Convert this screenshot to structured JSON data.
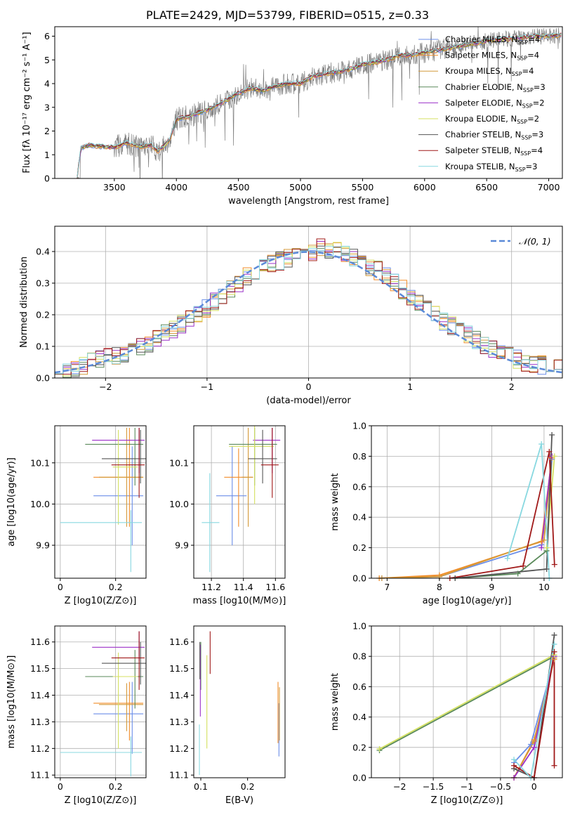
{
  "figure": {
    "title": "PLATE=2429, MJD=53799, FIBERID=0515, z=0.33"
  },
  "colors": {
    "models": [
      "#6b8ee8",
      "#f28c28",
      "#d49a3a",
      "#5a8a5a",
      "#9b30c8",
      "#d4e060",
      "#555555",
      "#a01818",
      "#88d8e0"
    ],
    "spectrum": "#808080",
    "normal": "#5b8ad8",
    "grid": "#b0b0b0"
  },
  "chart_data": [
    {
      "id": "spectrum",
      "type": "line",
      "xlabel": "wavelength [Angstrom, rest frame]",
      "ylabel": "Flux [fλ 10⁻¹⁷ erg cm⁻² s⁻¹ A⁻¹]",
      "xlim": [
        3020,
        7110
      ],
      "ylim": [
        0,
        6.4
      ],
      "xticks": [
        3500,
        4000,
        4500,
        5000,
        5500,
        6000,
        6500,
        7000
      ],
      "yticks": [
        0,
        1,
        2,
        3,
        4,
        5,
        6
      ],
      "grid": false,
      "legend_position": "top-right",
      "legend": [
        "Chabrier MILES, N_SSP=4",
        "Salpeter MILES, N_SSP=4",
        "Kroupa MILES, N_SSP=4",
        "Chabrier ELODIE, N_SSP=3",
        "Salpeter ELODIE, N_SSP=2",
        "Kroupa ELODIE, N_SSP=2",
        "Chabrier STELIB, N_SSP=3",
        "Salpeter STELIB, N_SSP=4",
        "Kroupa STELIB, N_SSP=3"
      ],
      "model_curve": {
        "x": [
          3200,
          3230,
          3300,
          3400,
          3500,
          3600,
          3700,
          3800,
          3850,
          3900,
          3950,
          4000,
          4100,
          4200,
          4300,
          4400,
          4500,
          4600,
          4700,
          4800,
          4900,
          5000,
          5100,
          5200,
          5300,
          5400,
          5500,
          5600,
          5700,
          5800,
          5900,
          6000,
          6100,
          6200,
          6300,
          6400,
          6500,
          6600,
          6700,
          6800,
          6900,
          7000,
          7100
        ],
        "y": [
          0,
          1.3,
          1.4,
          1.35,
          1.3,
          1.5,
          1.35,
          1.4,
          1.15,
          1.35,
          1.7,
          2.5,
          2.6,
          2.8,
          3.0,
          3.3,
          3.6,
          3.8,
          3.7,
          3.9,
          4.0,
          4.0,
          4.3,
          4.4,
          4.5,
          4.6,
          4.8,
          4.9,
          5.0,
          5.2,
          5.2,
          5.3,
          5.4,
          5.5,
          5.6,
          5.7,
          5.8,
          5.85,
          5.9,
          5.95,
          6.0,
          6.0,
          6.05
        ]
      }
    },
    {
      "id": "residuals",
      "type": "line",
      "xlabel": "(data-model)/error",
      "ylabel": "Normed distribution",
      "xlim": [
        -2.5,
        2.5
      ],
      "ylim": [
        0,
        0.48
      ],
      "xticks": [
        -2,
        -1,
        0,
        1,
        2
      ],
      "yticks": [
        0.0,
        0.1,
        0.2,
        0.3,
        0.4
      ],
      "grid": true,
      "legend_position": "top-right",
      "legend": [
        "𝒩(0, 1)"
      ],
      "bin_width": 0.1,
      "hist_base": [
        0.02,
        0.025,
        0.03,
        0.04,
        0.05,
        0.06,
        0.065,
        0.07,
        0.08,
        0.09,
        0.1,
        0.11,
        0.125,
        0.14,
        0.155,
        0.17,
        0.19,
        0.2,
        0.22,
        0.24,
        0.26,
        0.28,
        0.3,
        0.32,
        0.33,
        0.35,
        0.36,
        0.37,
        0.38,
        0.39,
        0.4,
        0.4,
        0.41,
        0.4,
        0.4,
        0.39,
        0.38,
        0.37,
        0.35,
        0.34,
        0.32,
        0.3,
        0.28,
        0.26,
        0.24,
        0.22,
        0.2,
        0.18,
        0.165,
        0.15,
        0.135,
        0.12,
        0.105,
        0.09,
        0.08,
        0.07,
        0.06,
        0.05,
        0.045,
        0.04,
        0.035,
        0.03
      ]
    },
    {
      "id": "z-age",
      "type": "scatter",
      "xlabel": "Z [log10(Z/Z⊙)]",
      "ylabel": "age  [log10(age/yr)]",
      "xlim": [
        -0.02,
        0.31
      ],
      "ylim": [
        9.82,
        10.19
      ],
      "xticks": [
        0.0,
        0.2
      ],
      "yticks": [
        9.9,
        10.0,
        10.1
      ],
      "grid": true,
      "points": [
        {
          "x": 0.26,
          "y": 10.02,
          "xerr": [
            0.14,
            0.04
          ],
          "yerr": [
            0.12,
            0.12
          ]
        },
        {
          "x": 0.25,
          "y": 10.065,
          "xerr": [
            0.13,
            0.05
          ],
          "yerr": [
            0.12,
            0.12
          ]
        },
        {
          "x": 0.24,
          "y": 10.065,
          "xerr": [
            0.1,
            0.06
          ],
          "yerr": [
            0.12,
            0.12
          ]
        },
        {
          "x": 0.27,
          "y": 10.145,
          "xerr": [
            0.18,
            0.03
          ],
          "yerr": [
            0.1,
            0.04
          ]
        },
        {
          "x": 0.285,
          "y": 10.155,
          "xerr": [
            0.17,
            0.02
          ],
          "yerr": [
            0.08,
            0.03
          ]
        },
        {
          "x": 0.21,
          "y": 10.09,
          "xerr": [
            0.02,
            0.07
          ],
          "yerr": [
            0.14,
            0.09
          ]
        },
        {
          "x": 0.29,
          "y": 10.11,
          "xerr": [
            0.14,
            0.02
          ],
          "yerr": [
            0.06,
            0.07
          ]
        },
        {
          "x": 0.285,
          "y": 10.095,
          "xerr": [
            0.1,
            0.02
          ],
          "yerr": [
            0.08,
            0.09
          ]
        },
        {
          "x": 0.255,
          "y": 9.955,
          "xerr": [
            0.255,
            0.04
          ],
          "yerr": [
            0.12,
            0.03
          ]
        }
      ]
    },
    {
      "id": "mass-age",
      "type": "scatter",
      "xlabel": "mass [log10(M/M⊙)]",
      "ylabel": "",
      "xlim": [
        11.09,
        11.66
      ],
      "ylim": [
        9.82,
        10.19
      ],
      "xticks": [
        11.2,
        11.4,
        11.6
      ],
      "yticks": [
        9.9,
        10.0,
        10.1
      ],
      "grid": true,
      "points": [
        {
          "x": 11.33,
          "y": 10.02,
          "xerr": [
            0.1,
            0.09
          ],
          "yerr": [
            0.12,
            0.12
          ]
        },
        {
          "x": 11.37,
          "y": 10.065,
          "xerr": [
            0.09,
            0.09
          ],
          "yerr": [
            0.12,
            0.07
          ]
        },
        {
          "x": 11.43,
          "y": 10.065,
          "xerr": [
            0.04,
            0.03
          ],
          "yerr": [
            0.12,
            0.12
          ]
        },
        {
          "x": 11.47,
          "y": 10.145,
          "xerr": [
            0.16,
            0.14
          ],
          "yerr": [
            0.1,
            0.04
          ]
        },
        {
          "x": 11.58,
          "y": 10.155,
          "xerr": [
            0.12,
            0.05
          ],
          "yerr": [
            0.08,
            0.03
          ]
        },
        {
          "x": 11.47,
          "y": 10.14,
          "xerr": [
            0.16,
            0.12
          ],
          "yerr": [
            0.14,
            0.09
          ]
        },
        {
          "x": 11.52,
          "y": 10.11,
          "xerr": [
            0.09,
            0.09
          ],
          "yerr": [
            0.06,
            0.07
          ]
        },
        {
          "x": 11.58,
          "y": 10.095,
          "xerr": [
            0.07,
            0.04
          ],
          "yerr": [
            0.08,
            0.09
          ]
        },
        {
          "x": 11.19,
          "y": 9.955,
          "xerr": [
            0.05,
            0.06
          ],
          "yerr": [
            0.12,
            0.12
          ]
        }
      ]
    },
    {
      "id": "age-weight",
      "type": "line",
      "xlabel": "age  [log10(age/yr)]",
      "ylabel": "mass weight",
      "xlim": [
        6.7,
        10.35
      ],
      "ylim": [
        0,
        1.0
      ],
      "xticks": [
        7,
        8,
        9,
        10
      ],
      "yticks": [
        0.0,
        0.2,
        0.4,
        0.6,
        0.8,
        1.0
      ],
      "grid": true,
      "series": [
        {
          "x": [
            6.9,
            8.0,
            9.95,
            10.15
          ],
          "y": [
            0.0,
            0.01,
            0.22,
            0.78
          ]
        },
        {
          "x": [
            6.85,
            8.0,
            9.95,
            10.15
          ],
          "y": [
            0.0,
            0.02,
            0.24,
            0.79
          ]
        },
        {
          "x": [
            6.9,
            8.0,
            10.0,
            10.15
          ],
          "y": [
            0.0,
            0.01,
            0.25,
            0.8
          ]
        },
        {
          "x": [
            8.3,
            9.5,
            10.05,
            10.15
          ],
          "y": [
            0.0,
            0.03,
            0.18,
            0.8
          ]
        },
        {
          "x": [
            9.95,
            10.15
          ],
          "y": [
            0.2,
            0.8
          ]
        },
        {
          "x": [
            10.05,
            10.2
          ],
          "y": [
            0.2,
            0.8
          ]
        },
        {
          "x": [
            8.3,
            10.05,
            10.15
          ],
          "y": [
            0.0,
            0.06,
            0.94
          ]
        },
        {
          "x": [
            8.2,
            9.6,
            10.1,
            10.2
          ],
          "y": [
            0.0,
            0.08,
            0.83,
            0.09
          ]
        },
        {
          "x": [
            9.3,
            9.95,
            10.1
          ],
          "y": [
            0.13,
            0.88,
            0.0
          ]
        }
      ]
    },
    {
      "id": "z-mass",
      "type": "scatter",
      "xlabel": "Z [log10(Z/Z⊙)]",
      "ylabel": "mass [log10(M/M⊙)]",
      "xlim": [
        -0.02,
        0.31
      ],
      "ylim": [
        11.09,
        11.66
      ],
      "xticks": [
        0.0,
        0.2
      ],
      "yticks": [
        11.1,
        11.2,
        11.3,
        11.4,
        11.5,
        11.6
      ],
      "grid": true,
      "points": [
        {
          "x": 0.26,
          "y": 11.33,
          "xerr": [
            0.14,
            0.04
          ],
          "yerr": [
            0.15,
            0.12
          ]
        },
        {
          "x": 0.25,
          "y": 11.37,
          "xerr": [
            0.13,
            0.05
          ],
          "yerr": [
            0.14,
            0.08
          ]
        },
        {
          "x": 0.24,
          "y": 11.365,
          "xerr": [
            0.1,
            0.06
          ],
          "yerr": [
            0.1,
            0.08
          ]
        },
        {
          "x": 0.27,
          "y": 11.47,
          "xerr": [
            0.18,
            0.03
          ],
          "yerr": [
            0.12,
            0.1
          ]
        },
        {
          "x": 0.285,
          "y": 11.58,
          "xerr": [
            0.17,
            0.02
          ],
          "yerr": [
            0.05,
            0.06
          ]
        },
        {
          "x": 0.21,
          "y": 11.47,
          "xerr": [
            0.02,
            0.07
          ],
          "yerr": [
            0.27,
            0.09
          ]
        },
        {
          "x": 0.29,
          "y": 11.52,
          "xerr": [
            0.14,
            0.02
          ],
          "yerr": [
            0.08,
            0.08
          ]
        },
        {
          "x": 0.285,
          "y": 11.54,
          "xerr": [
            0.1,
            0.02
          ],
          "yerr": [
            0.12,
            0.1
          ]
        },
        {
          "x": 0.255,
          "y": 11.185,
          "xerr": [
            0.255,
            0.04
          ],
          "yerr": [
            0.09,
            0.06
          ]
        }
      ]
    },
    {
      "id": "ebv-mass",
      "type": "scatter",
      "xlabel": "E(B-V)",
      "ylabel": "",
      "xlim": [
        0.085,
        0.28
      ],
      "ylim": [
        11.09,
        11.66
      ],
      "xticks": [
        0.1,
        0.2
      ],
      "yticks": [
        11.1,
        11.2,
        11.3,
        11.4,
        11.5,
        11.6
      ],
      "grid": false,
      "points": [
        {
          "x": 0.267,
          "y": 11.27,
          "xerr": [
            0,
            0
          ],
          "yerr": [
            0.1,
            0.1
          ]
        },
        {
          "x": 0.265,
          "y": 11.34,
          "xerr": [
            0,
            0
          ],
          "yerr": [
            0.12,
            0.11
          ]
        },
        {
          "x": 0.268,
          "y": 11.33,
          "xerr": [
            0,
            0
          ],
          "yerr": [
            0.1,
            0.1
          ]
        },
        {
          "x": 0.1,
          "y": 11.49,
          "xerr": [
            0,
            0
          ],
          "yerr": [
            0.07,
            0.11
          ]
        },
        {
          "x": 0.099,
          "y": 11.46,
          "xerr": [
            0,
            0
          ],
          "yerr": [
            0.14,
            0.13
          ]
        },
        {
          "x": 0.113,
          "y": 11.38,
          "xerr": [
            0,
            0
          ],
          "yerr": [
            0.18,
            0.17
          ]
        },
        {
          "x": 0.098,
          "y": 11.5,
          "xerr": [
            0,
            0
          ],
          "yerr": [
            0.04,
            0.1
          ]
        },
        {
          "x": 0.12,
          "y": 11.56,
          "xerr": [
            0,
            0
          ],
          "yerr": [
            0.08,
            0.08
          ]
        },
        {
          "x": 0.097,
          "y": 11.19,
          "xerr": [
            0,
            0
          ],
          "yerr": [
            0.09,
            0.1
          ]
        }
      ]
    },
    {
      "id": "z-weight",
      "type": "line",
      "xlabel": "Z [log10(Z/Z⊙)]",
      "ylabel": "mass weight",
      "xlim": [
        -2.42,
        0.42
      ],
      "ylim": [
        0,
        1.0
      ],
      "xticks": [
        -2.0,
        -1.5,
        -1.0,
        -0.5,
        0.0
      ],
      "yticks": [
        0.0,
        0.2,
        0.4,
        0.6,
        0.8,
        1.0
      ],
      "grid": true,
      "series": [
        {
          "x": [
            -0.3,
            -0.05,
            0.3
          ],
          "y": [
            0.1,
            0.22,
            0.78
          ]
        },
        {
          "x": [
            -0.3,
            0.0,
            0.3
          ],
          "y": [
            0.0,
            0.25,
            0.78
          ]
        },
        {
          "x": [
            -0.3,
            0.0,
            0.3
          ],
          "y": [
            0.0,
            0.24,
            0.79
          ]
        },
        {
          "x": [
            -2.3,
            0.3
          ],
          "y": [
            0.18,
            0.8
          ]
        },
        {
          "x": [
            -0.3,
            0.0,
            0.3
          ],
          "y": [
            0.0,
            0.2,
            0.8
          ]
        },
        {
          "x": [
            -2.3,
            0.3
          ],
          "y": [
            0.19,
            0.81
          ]
        },
        {
          "x": [
            -0.3,
            0.0,
            0.3
          ],
          "y": [
            0.06,
            0.0,
            0.94
          ]
        },
        {
          "x": [
            -0.3,
            0.0,
            0.3,
            0.3
          ],
          "y": [
            0.08,
            0.0,
            0.83,
            0.08
          ]
        },
        {
          "x": [
            -0.3,
            -0.05,
            0.3
          ],
          "y": [
            0.12,
            0.0,
            0.88
          ]
        }
      ]
    }
  ]
}
